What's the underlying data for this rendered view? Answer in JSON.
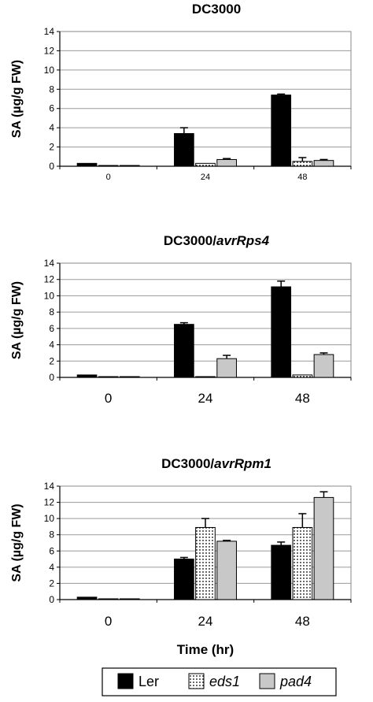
{
  "colors": {
    "Ler": "#000000",
    "eds1": "#ffffff",
    "pad4": "#c8c8c8"
  },
  "legend": [
    {
      "key": "Ler",
      "label": "Ler",
      "italic": false,
      "pattern": "solid-black"
    },
    {
      "key": "eds1",
      "label": "eds1",
      "italic": true,
      "pattern": "dotted-white"
    },
    {
      "key": "pad4",
      "label": "pad4",
      "italic": true,
      "pattern": "light-gray"
    }
  ],
  "chart_data": [
    {
      "type": "bar",
      "title": "DC3000",
      "title_italic": "",
      "ylabel": "SA (µg/g FW)",
      "xlabel": "",
      "categories": [
        "0",
        "24",
        "48"
      ],
      "ylim": [
        0,
        14
      ],
      "yticks": [
        0,
        2,
        4,
        6,
        8,
        10,
        12,
        14
      ],
      "grid": true,
      "series": [
        {
          "name": "Ler",
          "values": [
            0.3,
            3.4,
            7.4
          ],
          "errors": [
            0.0,
            0.6,
            0.1
          ]
        },
        {
          "name": "eds1",
          "values": [
            0.05,
            0.3,
            0.5
          ],
          "errors": [
            0.0,
            0.0,
            0.4
          ]
        },
        {
          "name": "pad4",
          "values": [
            0.05,
            0.7,
            0.6
          ],
          "errors": [
            0.0,
            0.1,
            0.1
          ]
        }
      ]
    },
    {
      "type": "bar",
      "title": "DC3000/",
      "title_italic": "avrRps4",
      "ylabel": "SA (µg/g FW)",
      "xlabel": "",
      "categories": [
        "0",
        "24",
        "48"
      ],
      "ylim": [
        0,
        14
      ],
      "yticks": [
        0,
        2,
        4,
        6,
        8,
        10,
        12,
        14
      ],
      "grid": true,
      "series": [
        {
          "name": "Ler",
          "values": [
            0.3,
            6.5,
            11.1
          ],
          "errors": [
            0.0,
            0.2,
            0.7
          ]
        },
        {
          "name": "eds1",
          "values": [
            0.05,
            0.05,
            0.3
          ],
          "errors": [
            0.0,
            0.0,
            0.0
          ]
        },
        {
          "name": "pad4",
          "values": [
            0.05,
            2.3,
            2.8
          ],
          "errors": [
            0.0,
            0.4,
            0.2
          ]
        }
      ]
    },
    {
      "type": "bar",
      "title": "DC3000/",
      "title_italic": "avrRpm1",
      "ylabel": "SA (µg/g FW)",
      "xlabel": "Time (hr)",
      "categories": [
        "0",
        "24",
        "48"
      ],
      "ylim": [
        0,
        14
      ],
      "yticks": [
        0,
        2,
        4,
        6,
        8,
        10,
        12,
        14
      ],
      "grid": true,
      "series": [
        {
          "name": "Ler",
          "values": [
            0.3,
            5.0,
            6.7
          ],
          "errors": [
            0.0,
            0.2,
            0.4
          ]
        },
        {
          "name": "eds1",
          "values": [
            0.05,
            8.9,
            8.9
          ],
          "errors": [
            0.0,
            1.1,
            1.7
          ]
        },
        {
          "name": "pad4",
          "values": [
            0.05,
            7.2,
            12.6
          ],
          "errors": [
            0.0,
            0.1,
            0.7
          ]
        }
      ]
    }
  ]
}
